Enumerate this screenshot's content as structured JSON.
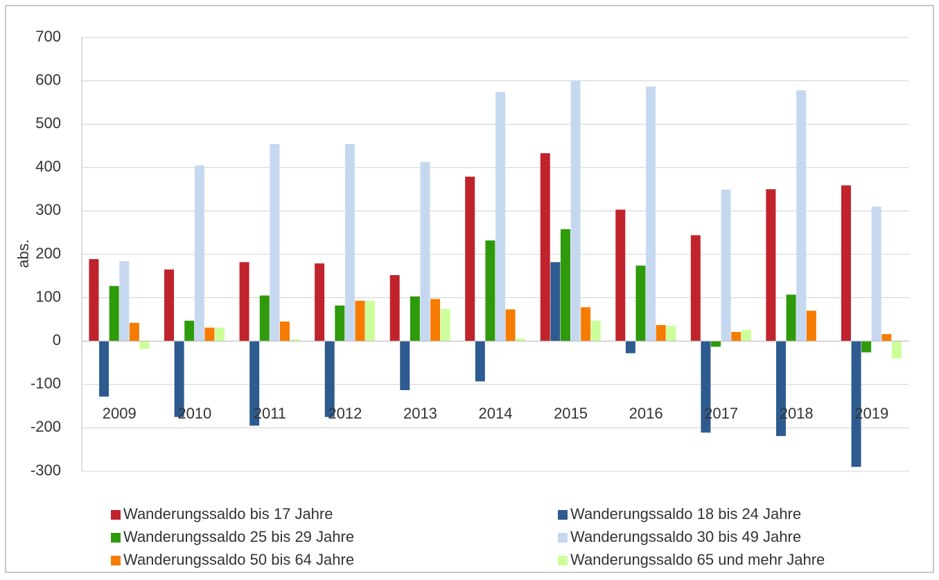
{
  "chart_data": {
    "type": "bar",
    "ylabel": "abs.",
    "categories": [
      "2009",
      "2010",
      "2011",
      "2012",
      "2013",
      "2014",
      "2015",
      "2016",
      "2017",
      "2018",
      "2019"
    ],
    "series": [
      {
        "name": "Wanderungssaldo bis 17 Jahre",
        "color": "#c0232c",
        "values": [
          189,
          165,
          182,
          179,
          152,
          379,
          433,
          303,
          244,
          350,
          359
        ]
      },
      {
        "name": "Wanderungssaldo 18 bis 24 Jahre",
        "color": "#2e5b8f",
        "values": [
          -128,
          -175,
          -195,
          -175,
          -113,
          -93,
          182,
          -28,
          -211,
          -219,
          -290
        ]
      },
      {
        "name": "Wanderungssaldo 25 bis 29 Jahre",
        "color": "#2e9a0c",
        "values": [
          127,
          47,
          105,
          82,
          103,
          232,
          258,
          174,
          -13,
          107,
          -26
        ]
      },
      {
        "name": "Wanderungssaldo 30 bis 49 Jahre",
        "color": "#c6d8f0",
        "values": [
          184,
          405,
          454,
          454,
          413,
          574,
          600,
          587,
          349,
          578,
          310
        ]
      },
      {
        "name": "Wanderungssaldo 50 bis 64 Jahre",
        "color": "#f57c00",
        "values": [
          42,
          31,
          45,
          93,
          97,
          73,
          78,
          37,
          21,
          70,
          16
        ]
      },
      {
        "name": "Wanderungssaldo 65 und mehr Jahre",
        "color": "#ccff99",
        "values": [
          -18,
          31,
          4,
          93,
          74,
          6,
          47,
          35,
          26,
          0,
          -40
        ]
      }
    ],
    "ylim": [
      -300,
      700
    ],
    "yticks": [
      -300,
      -200,
      -100,
      0,
      100,
      200,
      300,
      400,
      500,
      600,
      700
    ],
    "grid": true,
    "legend": "bottom"
  }
}
